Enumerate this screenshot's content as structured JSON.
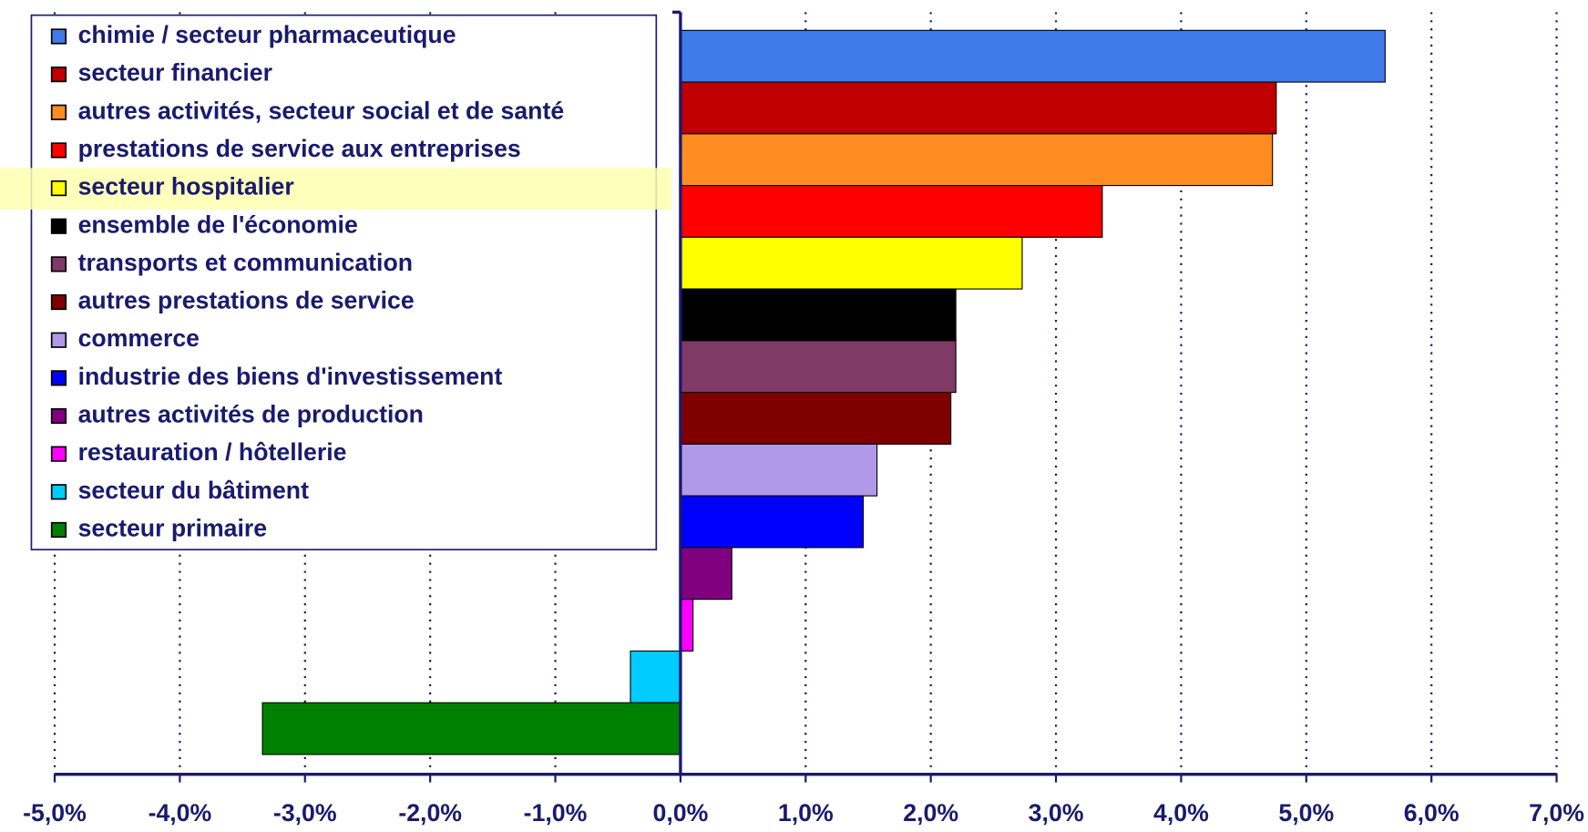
{
  "chart_data": {
    "type": "barh",
    "categories": [
      "chimie / secteur pharmaceutique",
      "secteur financier",
      "autres activités, secteur social et de santé",
      "prestations de service aux entreprises",
      "secteur hospitalier",
      "ensemble de l'économie",
      "transports et communication",
      "autres prestations de service",
      "commerce",
      "industrie des biens d'investissement",
      "autres activités de production",
      "restauration / hôtellerie",
      "secteur du bâtiment",
      "secteur primaire"
    ],
    "values": [
      5.63,
      4.76,
      4.73,
      3.37,
      2.73,
      2.2,
      2.2,
      2.16,
      1.57,
      1.46,
      0.41,
      0.1,
      -0.4,
      -3.34
    ],
    "colors": [
      "#3e7be8",
      "#c00000",
      "#ff8c20",
      "#ff0000",
      "#ffff00",
      "#000000",
      "#803a66",
      "#800000",
      "#b09ae8",
      "#0000ff",
      "#800080",
      "#ff00ff",
      "#00ccff",
      "#008000"
    ],
    "xlim": [
      -5,
      7
    ],
    "xticks": [
      {
        "value": -5,
        "label": "-5,0%"
      },
      {
        "value": -4,
        "label": "-4,0%"
      },
      {
        "value": -3,
        "label": "-3,0%"
      },
      {
        "value": -2,
        "label": "-2,0%"
      },
      {
        "value": -1,
        "label": "-1,0%"
      },
      {
        "value": 0,
        "label": "0,0%"
      },
      {
        "value": 1,
        "label": "1,0%"
      },
      {
        "value": 2,
        "label": "2,0%"
      },
      {
        "value": 3,
        "label": "3,0%"
      },
      {
        "value": 4,
        "label": "4,0%"
      },
      {
        "value": 5,
        "label": "5,0%"
      },
      {
        "value": 6,
        "label": "6,0%"
      },
      {
        "value": 7,
        "label": "7,0%"
      }
    ],
    "grid": true,
    "legend": "upper left"
  }
}
